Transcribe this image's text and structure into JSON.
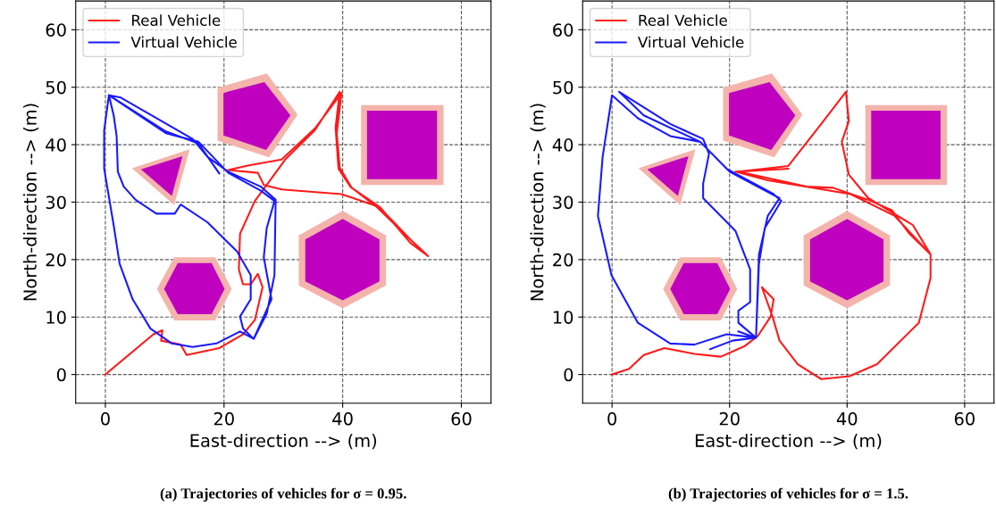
{
  "chart_data": [
    {
      "type": "line",
      "title": "(a) Trajectories of vehicles for σ = 0.95.",
      "xlabel": "East-direction --> (m)",
      "ylabel": "North-direction --> (m)",
      "xlim": [
        -5,
        65
      ],
      "ylim": [
        -5,
        65
      ],
      "xticks": [
        0,
        20,
        40,
        60
      ],
      "yticks": [
        0,
        10,
        20,
        30,
        40,
        50,
        60
      ],
      "grid": true,
      "legend": "top left",
      "line_style": "solid",
      "series": [
        {
          "type": "area",
          "color": "#f4b4ac",
          "x": [
            18.9,
            27.2,
            32.4,
            27.6,
            18.9
          ],
          "values": [
            49.9,
            52.4,
            45.2,
            37.8,
            40.7
          ]
        },
        {
          "type": "area",
          "color": "#bf00bf",
          "x": [
            19.9,
            26.8,
            31.2,
            27.1,
            19.9
          ],
          "values": [
            49.0,
            50.9,
            45.1,
            39.1,
            41.6
          ]
        },
        {
          "type": "area",
          "color": "#f4b4ac",
          "x": [
            43.1,
            57.0,
            57.0,
            43.1
          ],
          "values": [
            46.9,
            46.9,
            33.0,
            33.0
          ]
        },
        {
          "type": "area",
          "color": "#bf00bf",
          "x": [
            44.1,
            55.9,
            55.9,
            44.1
          ],
          "values": [
            45.9,
            45.9,
            34.0,
            34.0
          ]
        },
        {
          "type": "area",
          "color": "#f4b4ac",
          "x": [
            4.5,
            14.2,
            11.6
          ],
          "values": [
            35.9,
            39.2,
            29.5
          ]
        },
        {
          "type": "area",
          "color": "#bf00bf",
          "x": [
            6.0,
            13.0,
            11.2
          ],
          "values": [
            35.7,
            38.0,
            31.1
          ]
        },
        {
          "type": "area",
          "color": "#f4b4ac",
          "x": [
            8.7,
            11.6,
            18.5,
            21.3,
            18.5,
            11.6
          ],
          "values": [
            14.9,
            20.4,
            20.4,
            14.9,
            9.4,
            9.4
          ]
        },
        {
          "type": "area",
          "color": "#bf00bf",
          "x": [
            9.9,
            12.2,
            17.9,
            20.1,
            17.9,
            12.2
          ],
          "values": [
            14.9,
            19.4,
            19.4,
            14.9,
            10.5,
            10.5
          ]
        },
        {
          "type": "area",
          "color": "#f4b4ac",
          "x": [
            40,
            47.3,
            47.3,
            40,
            32.6,
            32.6
          ],
          "values": [
            28.5,
            24.2,
            15.5,
            11.5,
            15.5,
            24.2
          ]
        },
        {
          "type": "area",
          "color": "#bf00bf",
          "x": [
            40,
            46.2,
            46.2,
            40,
            33.7,
            33.7
          ],
          "values": [
            27.1,
            23.5,
            16.2,
            12.9,
            16.2,
            23.5
          ]
        },
        {
          "name": "Real Vehicle",
          "color": "#ff1a1a",
          "x": [
            0,
            8.1,
            9.6,
            9.4,
            12.7,
            13.7,
            19.2,
            23.2,
            25.2,
            26.5,
            25.7,
            24.5,
            23.2,
            22.5,
            22.7,
            25.2,
            27.2,
            30.3,
            35.3,
            39.5,
            38.8,
            39.3,
            41.3,
            45.8,
            51.4,
            54.4,
            51.4,
            46.3,
            39.8,
            29.7,
            26.7,
            25.7,
            20.7,
            24.2,
            29.7,
            35.3,
            39.8,
            39.0,
            39.5,
            41.5,
            46.0,
            51.6,
            54.0
          ],
          "values": [
            0,
            7.0,
            7.7,
            5.9,
            5.2,
            3.4,
            4.6,
            7.0,
            9.5,
            15.2,
            17.5,
            15.7,
            15.7,
            18.3,
            24.5,
            30.2,
            33.0,
            37.4,
            42.5,
            49.2,
            43.0,
            35.8,
            32.7,
            29.1,
            23.5,
            20.6,
            22.9,
            29.1,
            31.4,
            32.2,
            33.0,
            35.1,
            35.6,
            36.4,
            37.4,
            42.8,
            49.0,
            42.0,
            36.0,
            32.5,
            29.3,
            23.3,
            21.0
          ]
        },
        {
          "name": "Virtual Vehicle",
          "color": "#1a1aff",
          "x": [
            19.2,
            15.7,
            10.2,
            0.6,
            1.4,
            1.9,
            2.1,
            3.1,
            5.1,
            8.6,
            11.7,
            12.7,
            17.2,
            22.2,
            24.5,
            24.5,
            22.7,
            23.2,
            25.0,
            27.2,
            28.5,
            28.7,
            26.2,
            20.7,
            17.2,
            14.7,
            2.6,
            0.6,
            -0.2,
            -0.2,
            1.4,
            2.4,
            4.6,
            7.6,
            11.2,
            14.7,
            18.7,
            22.7,
            25.0,
            28.0,
            26.7,
            27.2,
            28.5,
            26.2,
            20.7,
            15.7,
            10.2,
            0.6
          ],
          "values": [
            35.0,
            40.2,
            42.3,
            48.6,
            45.1,
            41.5,
            35.3,
            32.7,
            30.4,
            28.0,
            28.0,
            29.6,
            26.5,
            21.4,
            17.3,
            13.1,
            10.1,
            8.0,
            6.2,
            10.6,
            17.3,
            30.4,
            32.7,
            35.3,
            37.9,
            41.0,
            48.2,
            48.6,
            42.5,
            35.8,
            26.0,
            19.3,
            13.1,
            8.0,
            5.4,
            4.8,
            5.4,
            7.5,
            6.2,
            13.1,
            20.4,
            25.5,
            30.2,
            32.0,
            35.1,
            40.5,
            42.0,
            48.6
          ]
        }
      ]
    },
    {
      "type": "line",
      "title": "(b) Trajectories of vehicles for σ = 1.5.",
      "xlabel": "East-direction --> (m)",
      "ylabel": "North-direction --> (m)",
      "xlim": [
        -5,
        65
      ],
      "ylim": [
        -5,
        65
      ],
      "xticks": [
        0,
        20,
        40,
        60
      ],
      "yticks": [
        0,
        10,
        20,
        30,
        40,
        50,
        60
      ],
      "grid": true,
      "legend": "top left",
      "line_style": "solid",
      "series": [
        {
          "type": "area",
          "color": "#f4b4ac",
          "x": [
            18.9,
            27.2,
            32.4,
            27.6,
            18.9
          ],
          "values": [
            49.9,
            52.4,
            45.2,
            37.8,
            40.7
          ]
        },
        {
          "type": "area",
          "color": "#bf00bf",
          "x": [
            19.9,
            26.8,
            31.2,
            27.1,
            19.9
          ],
          "values": [
            49.0,
            50.9,
            45.1,
            39.1,
            41.6
          ]
        },
        {
          "type": "area",
          "color": "#f4b4ac",
          "x": [
            43.1,
            57.0,
            57.0,
            43.1
          ],
          "values": [
            46.9,
            46.9,
            33.0,
            33.0
          ]
        },
        {
          "type": "area",
          "color": "#bf00bf",
          "x": [
            44.1,
            55.9,
            55.9,
            44.1
          ],
          "values": [
            45.9,
            45.9,
            34.0,
            34.0
          ]
        },
        {
          "type": "area",
          "color": "#f4b4ac",
          "x": [
            4.5,
            14.2,
            11.6
          ],
          "values": [
            35.9,
            39.2,
            29.5
          ]
        },
        {
          "type": "area",
          "color": "#bf00bf",
          "x": [
            6.0,
            13.0,
            11.2
          ],
          "values": [
            35.7,
            38.0,
            31.1
          ]
        },
        {
          "type": "area",
          "color": "#f4b4ac",
          "x": [
            8.7,
            11.6,
            18.5,
            21.3,
            18.5,
            11.6
          ],
          "values": [
            14.9,
            20.4,
            20.4,
            14.9,
            9.4,
            9.4
          ]
        },
        {
          "type": "area",
          "color": "#bf00bf",
          "x": [
            9.9,
            12.2,
            17.9,
            20.1,
            17.9,
            12.2
          ],
          "values": [
            14.9,
            19.4,
            19.4,
            14.9,
            10.5,
            10.5
          ]
        },
        {
          "type": "area",
          "color": "#f4b4ac",
          "x": [
            40,
            47.3,
            47.3,
            40,
            32.6,
            32.6
          ],
          "values": [
            28.5,
            24.2,
            15.5,
            11.5,
            15.5,
            24.2
          ]
        },
        {
          "type": "area",
          "color": "#bf00bf",
          "x": [
            40,
            46.2,
            46.2,
            40,
            33.7,
            33.7
          ],
          "values": [
            27.1,
            23.5,
            16.2,
            12.9,
            16.2,
            23.5
          ]
        },
        {
          "name": "Real Vehicle",
          "color": "#ff1a1a",
          "x": [
            0,
            2.9,
            5.4,
            8.9,
            14.0,
            18.5,
            22.5,
            24.8,
            27.0,
            27.5,
            25.5,
            27.3,
            28.5,
            31.6,
            35.6,
            40.4,
            45.1,
            52.2,
            54.2,
            54.2,
            50.6,
            47.6,
            43.6,
            37.6,
            33.1,
            21.5,
            30.0,
            35.6,
            39.8,
            40.3,
            39.1,
            40.3,
            43.6,
            51.2,
            54.2,
            48.1,
            40.6,
            26.5,
            21.0,
            30.0
          ],
          "values": [
            0,
            1.0,
            3.4,
            4.6,
            3.6,
            3.1,
            4.9,
            6.7,
            10.1,
            13.1,
            15.2,
            10.1,
            5.9,
            1.8,
            -0.8,
            -0.3,
            1.8,
            9.0,
            16.8,
            20.9,
            24.5,
            28.6,
            30.4,
            32.5,
            32.7,
            35.3,
            36.3,
            43.6,
            49.2,
            44.1,
            40.5,
            34.8,
            30.7,
            26.0,
            20.9,
            27.6,
            31.4,
            33.8,
            35.3,
            35.8
          ]
        },
        {
          "name": "Virtual Vehicle",
          "color": "#1a1aff",
          "x": [
            16.7,
            20.5,
            24.5,
            21.5,
            21.5,
            23.5,
            23.5,
            21.0,
            15.5,
            15.5,
            16.5,
            15.5,
            9.9,
            1.2,
            5.4,
            15.0,
            19.5,
            27.5,
            28.8,
            26.0,
            25.0,
            24.5,
            19.5,
            14.0,
            9.9,
            4.4,
            -0.1,
            -2.4,
            -1.6,
            0,
            4.4,
            9.9,
            15.0,
            20.0,
            28.5,
            26.5,
            25.0,
            24.5,
            21.5
          ],
          "values": [
            4.4,
            5.9,
            6.4,
            9.0,
            11.1,
            12.6,
            18.3,
            25.0,
            30.7,
            33.2,
            38.4,
            41.0,
            43.6,
            49.2,
            45.1,
            40.5,
            35.8,
            31.4,
            30.2,
            25.5,
            19.3,
            6.4,
            7.0,
            5.2,
            5.4,
            9.0,
            17.3,
            27.6,
            37.9,
            48.6,
            44.6,
            41.5,
            40.5,
            35.3,
            30.7,
            27.6,
            20.9,
            6.4,
            7.5
          ]
        }
      ]
    }
  ]
}
